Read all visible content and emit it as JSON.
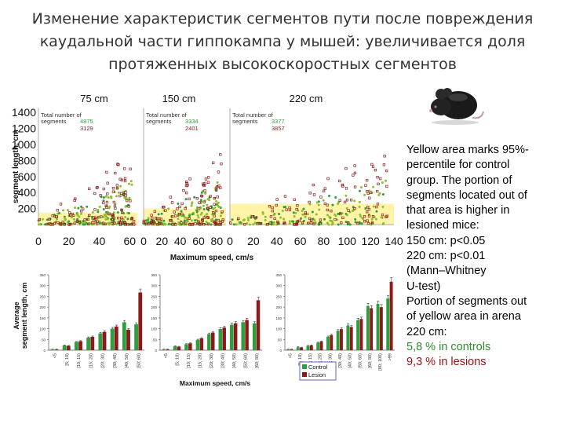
{
  "title_lines": [
    "Изменение характеристик сегментов пути после повреждения",
    "каудальной части гиппокампа у мышей: увеличивается доля",
    "протяженных высокоскоростных сегментов"
  ],
  "side_text": {
    "lines": [
      "Yellow area marks 95%-",
      "percentile for control",
      "group. The portion of",
      "segments located out of",
      "that area is higher in",
      "lesioned mice:",
      "150 cm: p<0.05",
      "220 cm: p<0.01",
      "(Mann–Whitney",
      "U-test)",
      "Portion of segments out",
      "of yellow area in arena",
      "220 cm:"
    ],
    "control_line": "5,8 % in controls",
    "lesion_line": "9,3 % in lesions"
  },
  "colors": {
    "control_scatter": "#8fbf2a",
    "control_green": "#2e9e3e",
    "lesion": "#8b1a1a",
    "yellow_area": "#fff4a8"
  },
  "icons": {
    "mouse": "mouse-photo"
  },
  "chart_data": [
    {
      "type": "scatter",
      "panel": "75 cm",
      "ylabel": "segment length, cm",
      "y_ticks": [
        200,
        400,
        600,
        800,
        1000,
        1200,
        1400
      ],
      "x_ticks": [
        0,
        20,
        40,
        60
      ],
      "xlim": [
        0,
        65
      ],
      "ylim": [
        0,
        1450
      ],
      "yellow_area": {
        "x": [
          0,
          65
        ],
        "y": [
          0,
          150
        ]
      },
      "legend_title": [
        "Total number of",
        "segments"
      ],
      "series": [
        {
          "name": "Control",
          "count": "4875"
        },
        {
          "name": "Lesion",
          "count": "3129"
        }
      ]
    },
    {
      "type": "scatter",
      "panel": "150 cm",
      "x_ticks": [
        0,
        20,
        40,
        60,
        80
      ],
      "xlim": [
        0,
        90
      ],
      "ylim": [
        0,
        1450
      ],
      "yellow_area": {
        "x": [
          0,
          90
        ],
        "y": [
          0,
          200
        ]
      },
      "legend_title": [
        "Total number of",
        "segments"
      ],
      "series": [
        {
          "name": "Control",
          "count": "3334"
        },
        {
          "name": "Lesion",
          "count": "2401"
        }
      ]
    },
    {
      "type": "scatter",
      "panel": "220 cm",
      "x_ticks": [
        0,
        20,
        40,
        60,
        80,
        100,
        120,
        140
      ],
      "xlim": [
        0,
        140
      ],
      "ylim": [
        0,
        1450
      ],
      "yellow_area": {
        "x": [
          0,
          140
        ],
        "y": [
          0,
          260
        ]
      },
      "legend_title": [
        "Total number of",
        "segments"
      ],
      "series": [
        {
          "name": "Control",
          "count": "3377"
        },
        {
          "name": "Lesion",
          "count": "3857"
        }
      ]
    },
    {
      "type": "bar",
      "shared_xlabel": "Maximum speed, cm/s",
      "bottom_xlabel": "Maximum speed, cm/s",
      "ylabel_lines": [
        "Average",
        "segment length, cm"
      ],
      "legend": [
        "Control",
        "Lesion"
      ],
      "panels": [
        {
          "y_ticks": [
            "0",
            "50",
            "100",
            "150",
            "200",
            "250",
            "300",
            "350"
          ],
          "ylim": [
            0,
            350
          ],
          "categories": [
            "<5",
            "[5; 10)",
            "[10; 15)",
            "[15; 20)",
            "[20; 30)",
            "[30; 40)",
            "[40; 50)",
            "[50; 60)"
          ],
          "series": [
            {
              "name": "Control",
              "values": [
                3,
                22,
                38,
                58,
                78,
                100,
                130,
                120
              ]
            },
            {
              "name": "Lesion",
              "values": [
                3,
                20,
                42,
                62,
                85,
                110,
                95,
                268
              ]
            }
          ]
        },
        {
          "y_ticks": [
            "0",
            "50",
            "100",
            "150",
            "200",
            "250",
            "300",
            "350"
          ],
          "ylim": [
            0,
            350
          ],
          "categories": [
            "<5",
            "[5; 10)",
            "[10; 15)",
            "[15; 20)",
            "[20; 30)",
            "[30; 40)",
            "[40; 50)",
            "[50; 60)",
            "[60; 80)"
          ],
          "series": [
            {
              "name": "Control",
              "values": [
                3,
                18,
                28,
                48,
                75,
                98,
                118,
                130,
                125
              ]
            },
            {
              "name": "Lesion",
              "values": [
                3,
                16,
                32,
                55,
                82,
                105,
                125,
                140,
                232
              ]
            }
          ]
        },
        {
          "y_ticks": [
            "0",
            "50",
            "100",
            "150",
            "200",
            "250",
            "300",
            "350"
          ],
          "ylim": [
            0,
            350
          ],
          "categories": [
            "<5",
            "[5; 10)",
            "[10; 15)",
            "[15; 20)",
            "[20; 30)",
            "[30; 40)",
            "[40; 50)",
            "[50; 60)",
            "[60; 80)",
            "[80; 100)",
            ">99"
          ],
          "series": [
            {
              "name": "Control",
              "values": [
                3,
                14,
                20,
                35,
                62,
                90,
                115,
                140,
                205,
                215,
                240
              ]
            },
            {
              "name": "Lesion",
              "values": [
                3,
                12,
                22,
                40,
                70,
                98,
                108,
                145,
                195,
                200,
                318
              ]
            }
          ]
        }
      ]
    }
  ]
}
